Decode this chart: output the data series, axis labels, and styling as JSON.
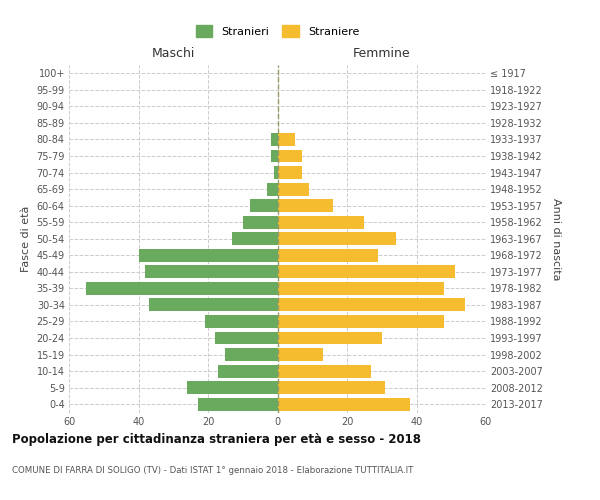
{
  "age_groups": [
    "0-4",
    "5-9",
    "10-14",
    "15-19",
    "20-24",
    "25-29",
    "30-34",
    "35-39",
    "40-44",
    "45-49",
    "50-54",
    "55-59",
    "60-64",
    "65-69",
    "70-74",
    "75-79",
    "80-84",
    "85-89",
    "90-94",
    "95-99",
    "100+"
  ],
  "birth_years": [
    "2013-2017",
    "2008-2012",
    "2003-2007",
    "1998-2002",
    "1993-1997",
    "1988-1992",
    "1983-1987",
    "1978-1982",
    "1973-1977",
    "1968-1972",
    "1963-1967",
    "1958-1962",
    "1953-1957",
    "1948-1952",
    "1943-1947",
    "1938-1942",
    "1933-1937",
    "1928-1932",
    "1923-1927",
    "1918-1922",
    "≤ 1917"
  ],
  "males": [
    23,
    26,
    17,
    15,
    18,
    21,
    37,
    55,
    38,
    40,
    13,
    10,
    8,
    3,
    1,
    2,
    2,
    0,
    0,
    0,
    0
  ],
  "females": [
    38,
    31,
    27,
    13,
    30,
    48,
    54,
    48,
    51,
    29,
    34,
    25,
    16,
    9,
    7,
    7,
    5,
    0,
    0,
    0,
    0
  ],
  "male_color": "#6aaa5e",
  "female_color": "#f5bc2f",
  "background_color": "#ffffff",
  "grid_color": "#cccccc",
  "title": "Popolazione per cittadinanza straniera per età e sesso - 2018",
  "subtitle": "COMUNE DI FARRA DI SOLIGO (TV) - Dati ISTAT 1° gennaio 2018 - Elaborazione TUTTITALIA.IT",
  "xlabel_left": "Maschi",
  "xlabel_right": "Femmine",
  "ylabel_left": "Fasce di età",
  "ylabel_right": "Anni di nascita",
  "legend_male": "Stranieri",
  "legend_female": "Straniere",
  "xlim": 60
}
